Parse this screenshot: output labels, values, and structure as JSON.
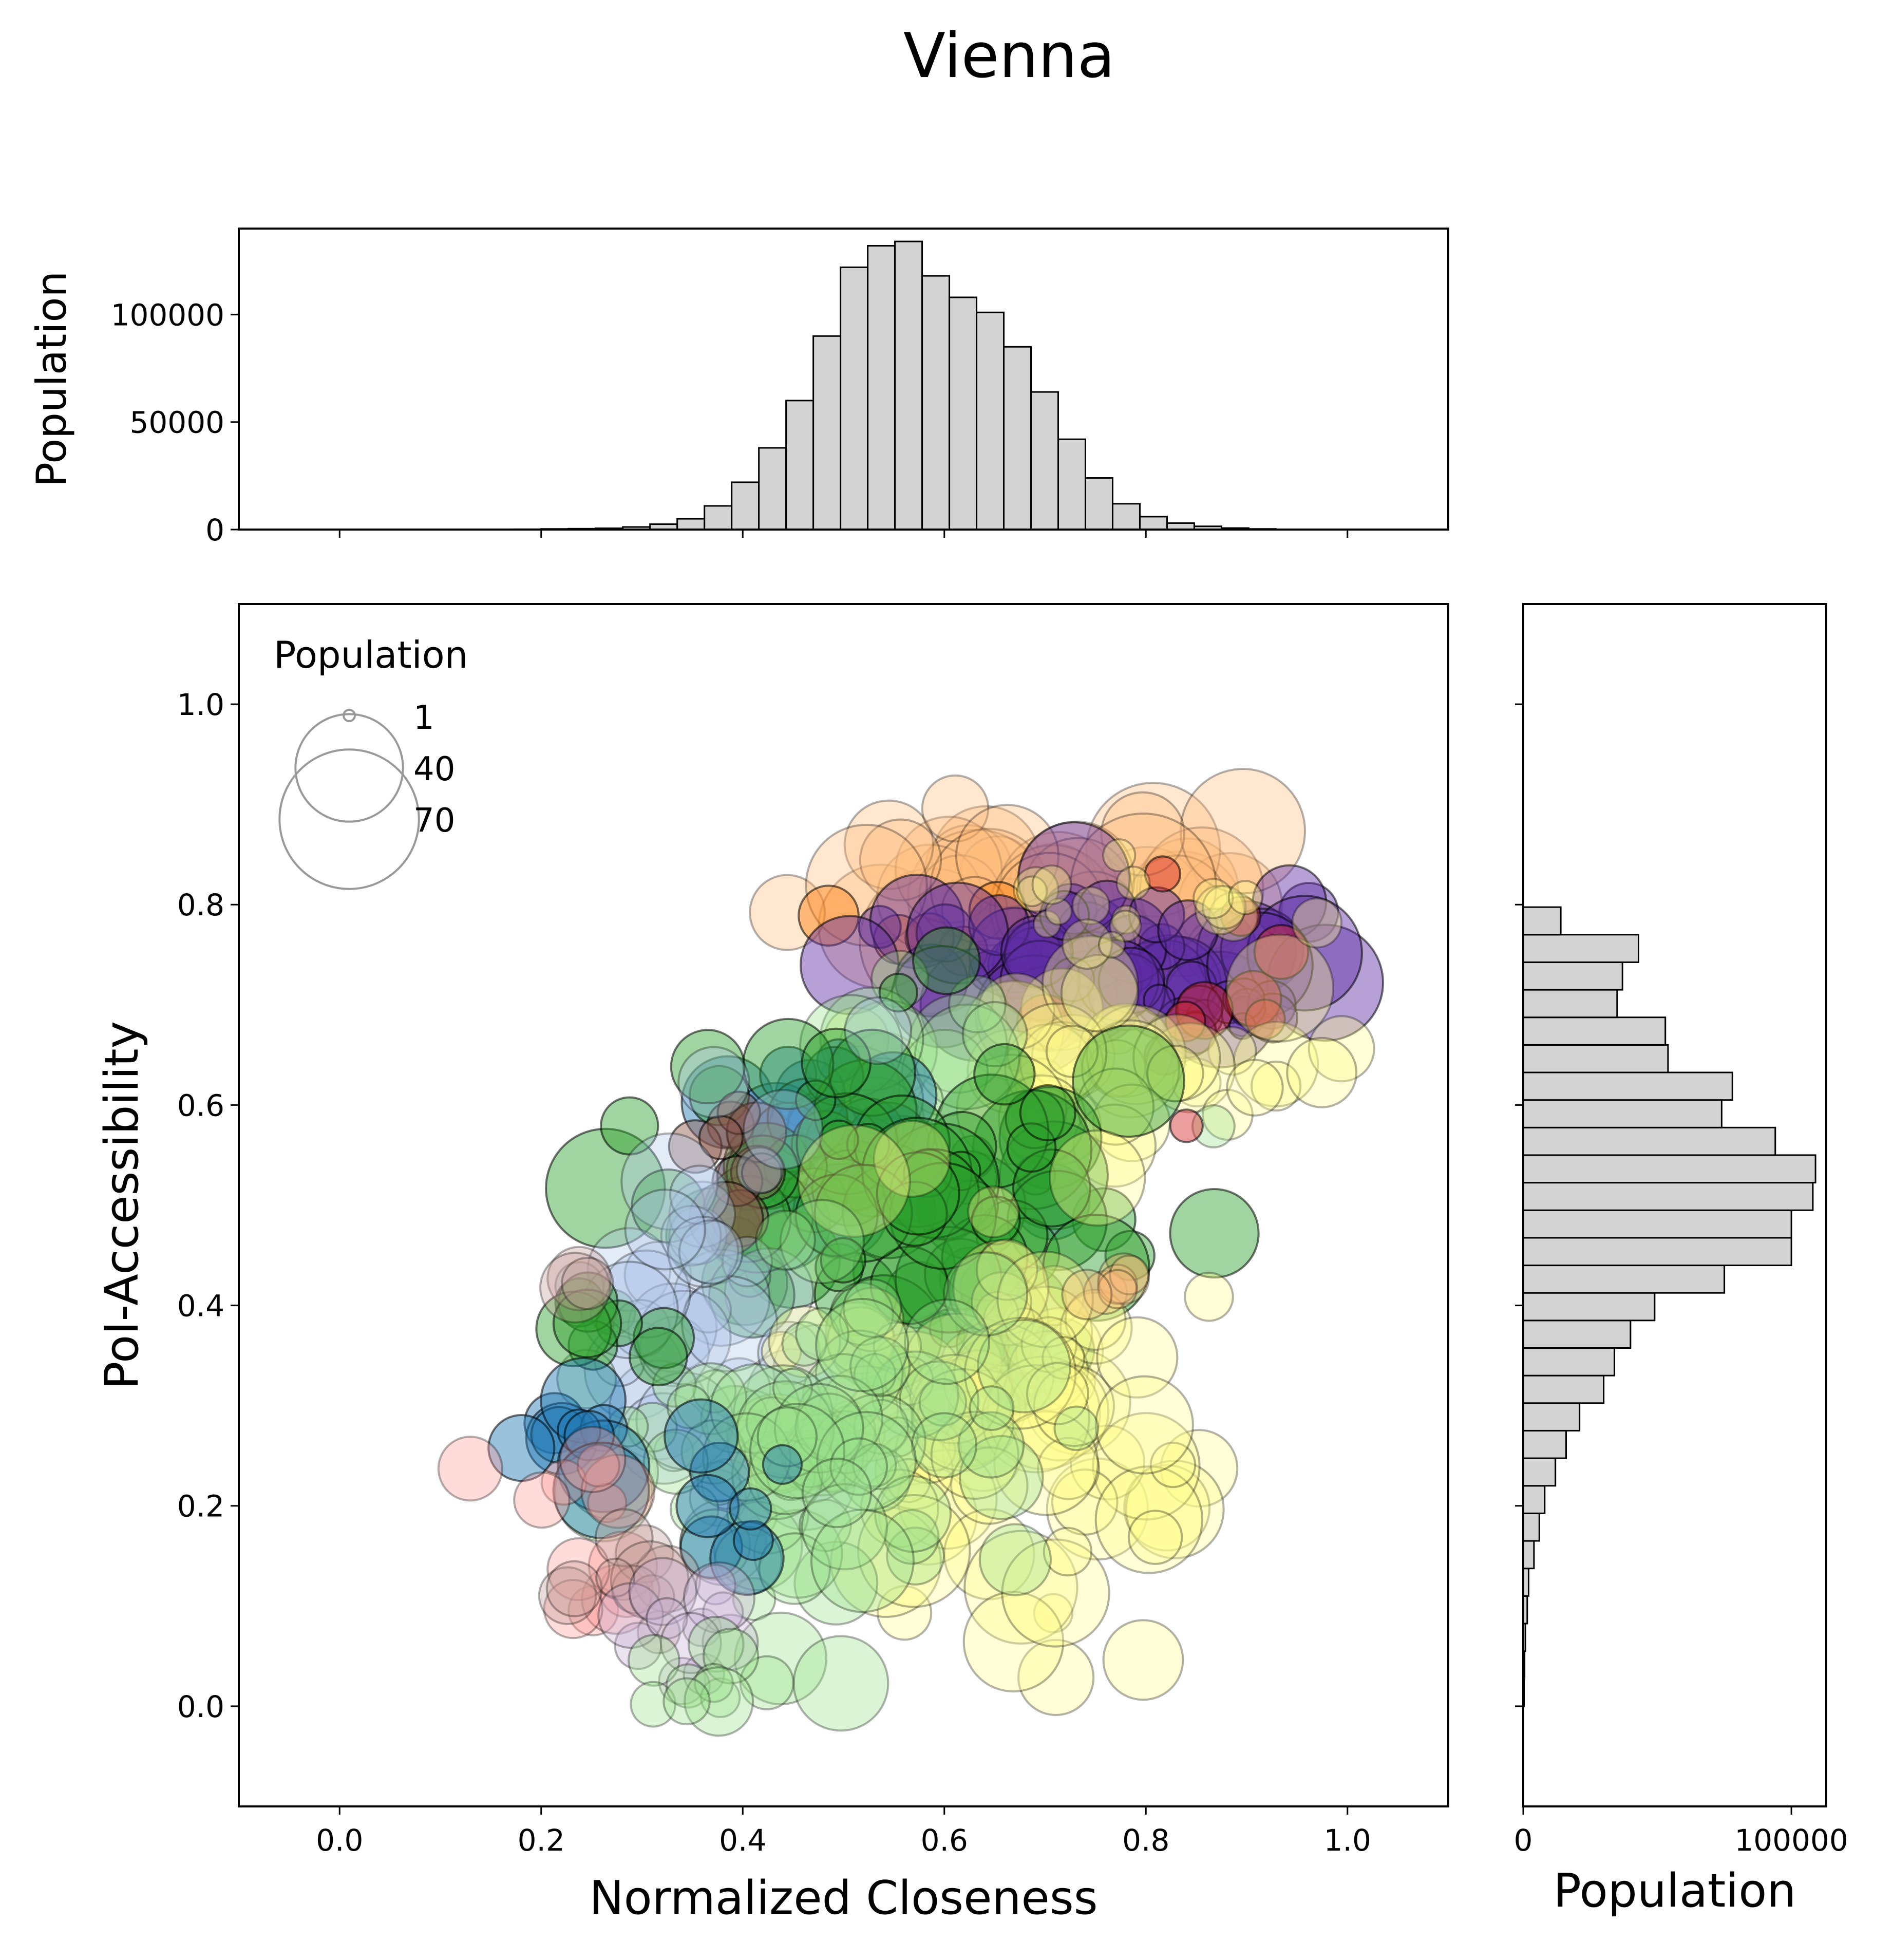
{
  "title": "Vienna",
  "colors": {
    "histogram_fill": "#d3d3d3",
    "histogram_edge": "#000000",
    "legend_marker_edge": "#999999",
    "communities": [
      "#1f77b4",
      "#aec7e8",
      "#ff7f0e",
      "#ffbb78",
      "#2ca02c",
      "#98df8a",
      "#d62728",
      "#ff9896",
      "#9467bd",
      "#c5b0d5",
      "#8c564b",
      "#c49c94",
      "#fffb8a",
      "#bcbd22",
      "#dbdb8d",
      "#5e2ca5"
    ]
  },
  "chart_data": [
    {
      "id": "scatter",
      "type": "scatter",
      "xlabel": "Normalized Closeness",
      "ylabel": "PoI-Accessibility",
      "xlim": [
        -0.1,
        1.1
      ],
      "ylim": [
        -0.1,
        1.1
      ],
      "xticks": [
        0.0,
        0.2,
        0.4,
        0.6,
        0.8,
        1.0
      ],
      "xtick_labels": [
        "0.0",
        "0.2",
        "0.4",
        "0.6",
        "0.8",
        "1.0"
      ],
      "yticks": [
        0.0,
        0.2,
        0.4,
        0.6,
        0.8,
        1.0
      ],
      "ytick_labels": [
        "0.0",
        "0.2",
        "0.4",
        "0.6",
        "0.8",
        "1.0"
      ],
      "size_legend": {
        "title": "Population",
        "placement": "upper left",
        "entries": [
          {
            "label": "1",
            "value": 1
          },
          {
            "label": "40",
            "value": 40
          },
          {
            "label": "70",
            "value": 70
          }
        ]
      },
      "marker_size_encodes": "Population",
      "marker_alpha": 0.35,
      "grid": false,
      "clusters": [
        {
          "color": "#ffbb78",
          "center": [
            0.7,
            0.8
          ],
          "spread": [
            0.12,
            0.035
          ],
          "count": 45,
          "size_range": [
            10,
            70
          ]
        },
        {
          "color": "#ff7f0e",
          "center": [
            0.6,
            0.77
          ],
          "spread": [
            0.06,
            0.02
          ],
          "count": 6,
          "size_range": [
            4,
            12
          ]
        },
        {
          "color": "#5e2ca5",
          "center": [
            0.76,
            0.74
          ],
          "spread": [
            0.1,
            0.035
          ],
          "count": 55,
          "size_range": [
            3,
            45
          ]
        },
        {
          "color": "#5e2ca5",
          "center": [
            0.88,
            0.69
          ],
          "spread": [
            0.04,
            0.01
          ],
          "count": 14,
          "size_range": [
            1,
            6
          ]
        },
        {
          "color": "#d62728",
          "center": [
            0.88,
            0.72
          ],
          "spread": [
            0.05,
            0.04
          ],
          "count": 8,
          "size_range": [
            2,
            10
          ]
        },
        {
          "color": "#fffb8a",
          "center": [
            0.74,
            0.64
          ],
          "spread": [
            0.1,
            0.04
          ],
          "count": 40,
          "size_range": [
            5,
            40
          ]
        },
        {
          "color": "#98df8a",
          "center": [
            0.56,
            0.64
          ],
          "spread": [
            0.06,
            0.04
          ],
          "count": 15,
          "size_range": [
            5,
            40
          ]
        },
        {
          "color": "#1f77b4",
          "center": [
            0.5,
            0.55
          ],
          "spread": [
            0.08,
            0.05
          ],
          "count": 25,
          "size_range": [
            3,
            30
          ]
        },
        {
          "color": "#2ca02c",
          "center": [
            0.57,
            0.5
          ],
          "spread": [
            0.12,
            0.09
          ],
          "count": 95,
          "size_range": [
            3,
            45
          ]
        },
        {
          "color": "#8c564b",
          "center": [
            0.39,
            0.54
          ],
          "spread": [
            0.03,
            0.03
          ],
          "count": 10,
          "size_range": [
            3,
            16
          ]
        },
        {
          "color": "#aec7e8",
          "center": [
            0.38,
            0.37
          ],
          "spread": [
            0.06,
            0.09
          ],
          "count": 45,
          "size_range": [
            3,
            30
          ]
        },
        {
          "color": "#fffb8a",
          "center": [
            0.64,
            0.28
          ],
          "spread": [
            0.1,
            0.1
          ],
          "count": 90,
          "size_range": [
            3,
            40
          ]
        },
        {
          "color": "#98df8a",
          "center": [
            0.47,
            0.26
          ],
          "spread": [
            0.1,
            0.08
          ],
          "count": 85,
          "size_range": [
            3,
            32
          ]
        },
        {
          "color": "#2ca02c",
          "center": [
            0.25,
            0.37
          ],
          "spread": [
            0.03,
            0.02
          ],
          "count": 8,
          "size_range": [
            4,
            18
          ]
        },
        {
          "color": "#1f77b4",
          "center": [
            0.22,
            0.28
          ],
          "spread": [
            0.03,
            0.025
          ],
          "count": 10,
          "size_range": [
            3,
            30
          ]
        },
        {
          "color": "#1f77b4",
          "center": [
            0.37,
            0.2
          ],
          "spread": [
            0.04,
            0.04
          ],
          "count": 8,
          "size_range": [
            3,
            20
          ]
        },
        {
          "color": "#ff9896",
          "center": [
            0.25,
            0.19
          ],
          "spread": [
            0.03,
            0.06
          ],
          "count": 12,
          "size_range": [
            3,
            16
          ]
        },
        {
          "color": "#c49c94",
          "center": [
            0.28,
            0.12
          ],
          "spread": [
            0.04,
            0.03
          ],
          "count": 10,
          "size_range": [
            3,
            20
          ]
        },
        {
          "color": "#c5b0d5",
          "center": [
            0.36,
            0.06
          ],
          "spread": [
            0.03,
            0.04
          ],
          "count": 12,
          "size_range": [
            3,
            14
          ]
        },
        {
          "color": "#98df8a",
          "center": [
            0.37,
            0.02
          ],
          "spread": [
            0.03,
            0.02
          ],
          "count": 10,
          "size_range": [
            3,
            14
          ]
        },
        {
          "color": "#c49c94",
          "center": [
            0.24,
            0.43
          ],
          "spread": [
            0.01,
            0.01
          ],
          "count": 3,
          "size_range": [
            6,
            14
          ]
        },
        {
          "color": "#ffbb78",
          "center": [
            0.77,
            0.42
          ],
          "spread": [
            0.03,
            0.01
          ],
          "count": 6,
          "size_range": [
            3,
            10
          ]
        },
        {
          "color": "#ff9896",
          "center": [
            0.13,
            0.24
          ],
          "spread": [
            0.002,
            0.002
          ],
          "count": 1,
          "size_range": [
            11,
            11
          ]
        },
        {
          "color": "#98df8a",
          "center": [
            0.87,
            0.58
          ],
          "spread": [
            0.002,
            0.002
          ],
          "count": 1,
          "size_range": [
            4,
            4
          ]
        },
        {
          "color": "#d62728",
          "center": [
            0.84,
            0.58
          ],
          "spread": [
            0.002,
            0.002
          ],
          "count": 1,
          "size_range": [
            2,
            2
          ]
        },
        {
          "color": "#fffb8a",
          "center": [
            0.8,
            0.79
          ],
          "spread": [
            0.08,
            0.02
          ],
          "count": 18,
          "size_range": [
            1,
            6
          ]
        }
      ]
    },
    {
      "id": "top-histogram",
      "type": "bar",
      "orientation": "vertical",
      "xlabel": "",
      "ylabel": "Population",
      "xlim": [
        -0.1,
        1.1
      ],
      "ylim": [
        0,
        140000
      ],
      "yticks": [
        0,
        50000,
        100000
      ],
      "ytick_labels": [
        "0",
        "50000",
        "100000"
      ],
      "xticks": [
        0.0,
        0.2,
        0.4,
        0.6,
        0.8,
        1.0
      ],
      "bin_edges": [
        0.173,
        0.2,
        0.227,
        0.254,
        0.281,
        0.308,
        0.335,
        0.362,
        0.389,
        0.416,
        0.443,
        0.47,
        0.497,
        0.524,
        0.551,
        0.578,
        0.605,
        0.632,
        0.659,
        0.686,
        0.713,
        0.74,
        0.767,
        0.794,
        0.821,
        0.848,
        0.875,
        0.902,
        0.929
      ],
      "values": [
        150,
        300,
        400,
        600,
        1200,
        2500,
        5000,
        11000,
        22000,
        38000,
        60000,
        90000,
        122000,
        132000,
        134000,
        118000,
        108000,
        101000,
        85000,
        64000,
        42000,
        24000,
        12000,
        6000,
        3000,
        1500,
        700,
        300
      ]
    },
    {
      "id": "right-histogram",
      "type": "bar",
      "orientation": "horizontal",
      "xlabel": "Population",
      "ylabel": "",
      "xlim": [
        0,
        113000
      ],
      "ylim": [
        -0.1,
        1.1
      ],
      "xticks": [
        0,
        100000
      ],
      "xtick_labels": [
        "0",
        "100000"
      ],
      "yticks": [
        0.0,
        0.2,
        0.4,
        0.6,
        0.8,
        1.0
      ],
      "bin_edges": [
        0.0,
        0.0275,
        0.055,
        0.0825,
        0.11,
        0.1375,
        0.165,
        0.1925,
        0.22,
        0.2475,
        0.275,
        0.3025,
        0.33,
        0.3575,
        0.385,
        0.4125,
        0.44,
        0.4675,
        0.495,
        0.5225,
        0.55,
        0.5775,
        0.605,
        0.6325,
        0.66,
        0.6875,
        0.715,
        0.7425,
        0.77,
        0.7975,
        0.825
      ],
      "values": [
        300,
        500,
        800,
        1500,
        2000,
        4000,
        6000,
        8000,
        12000,
        16000,
        21000,
        30000,
        34000,
        40000,
        49000,
        75000,
        100000,
        100000,
        108000,
        109000,
        94000,
        74000,
        78000,
        54000,
        53000,
        35000,
        37000,
        43000,
        14000,
        0
      ]
    }
  ]
}
